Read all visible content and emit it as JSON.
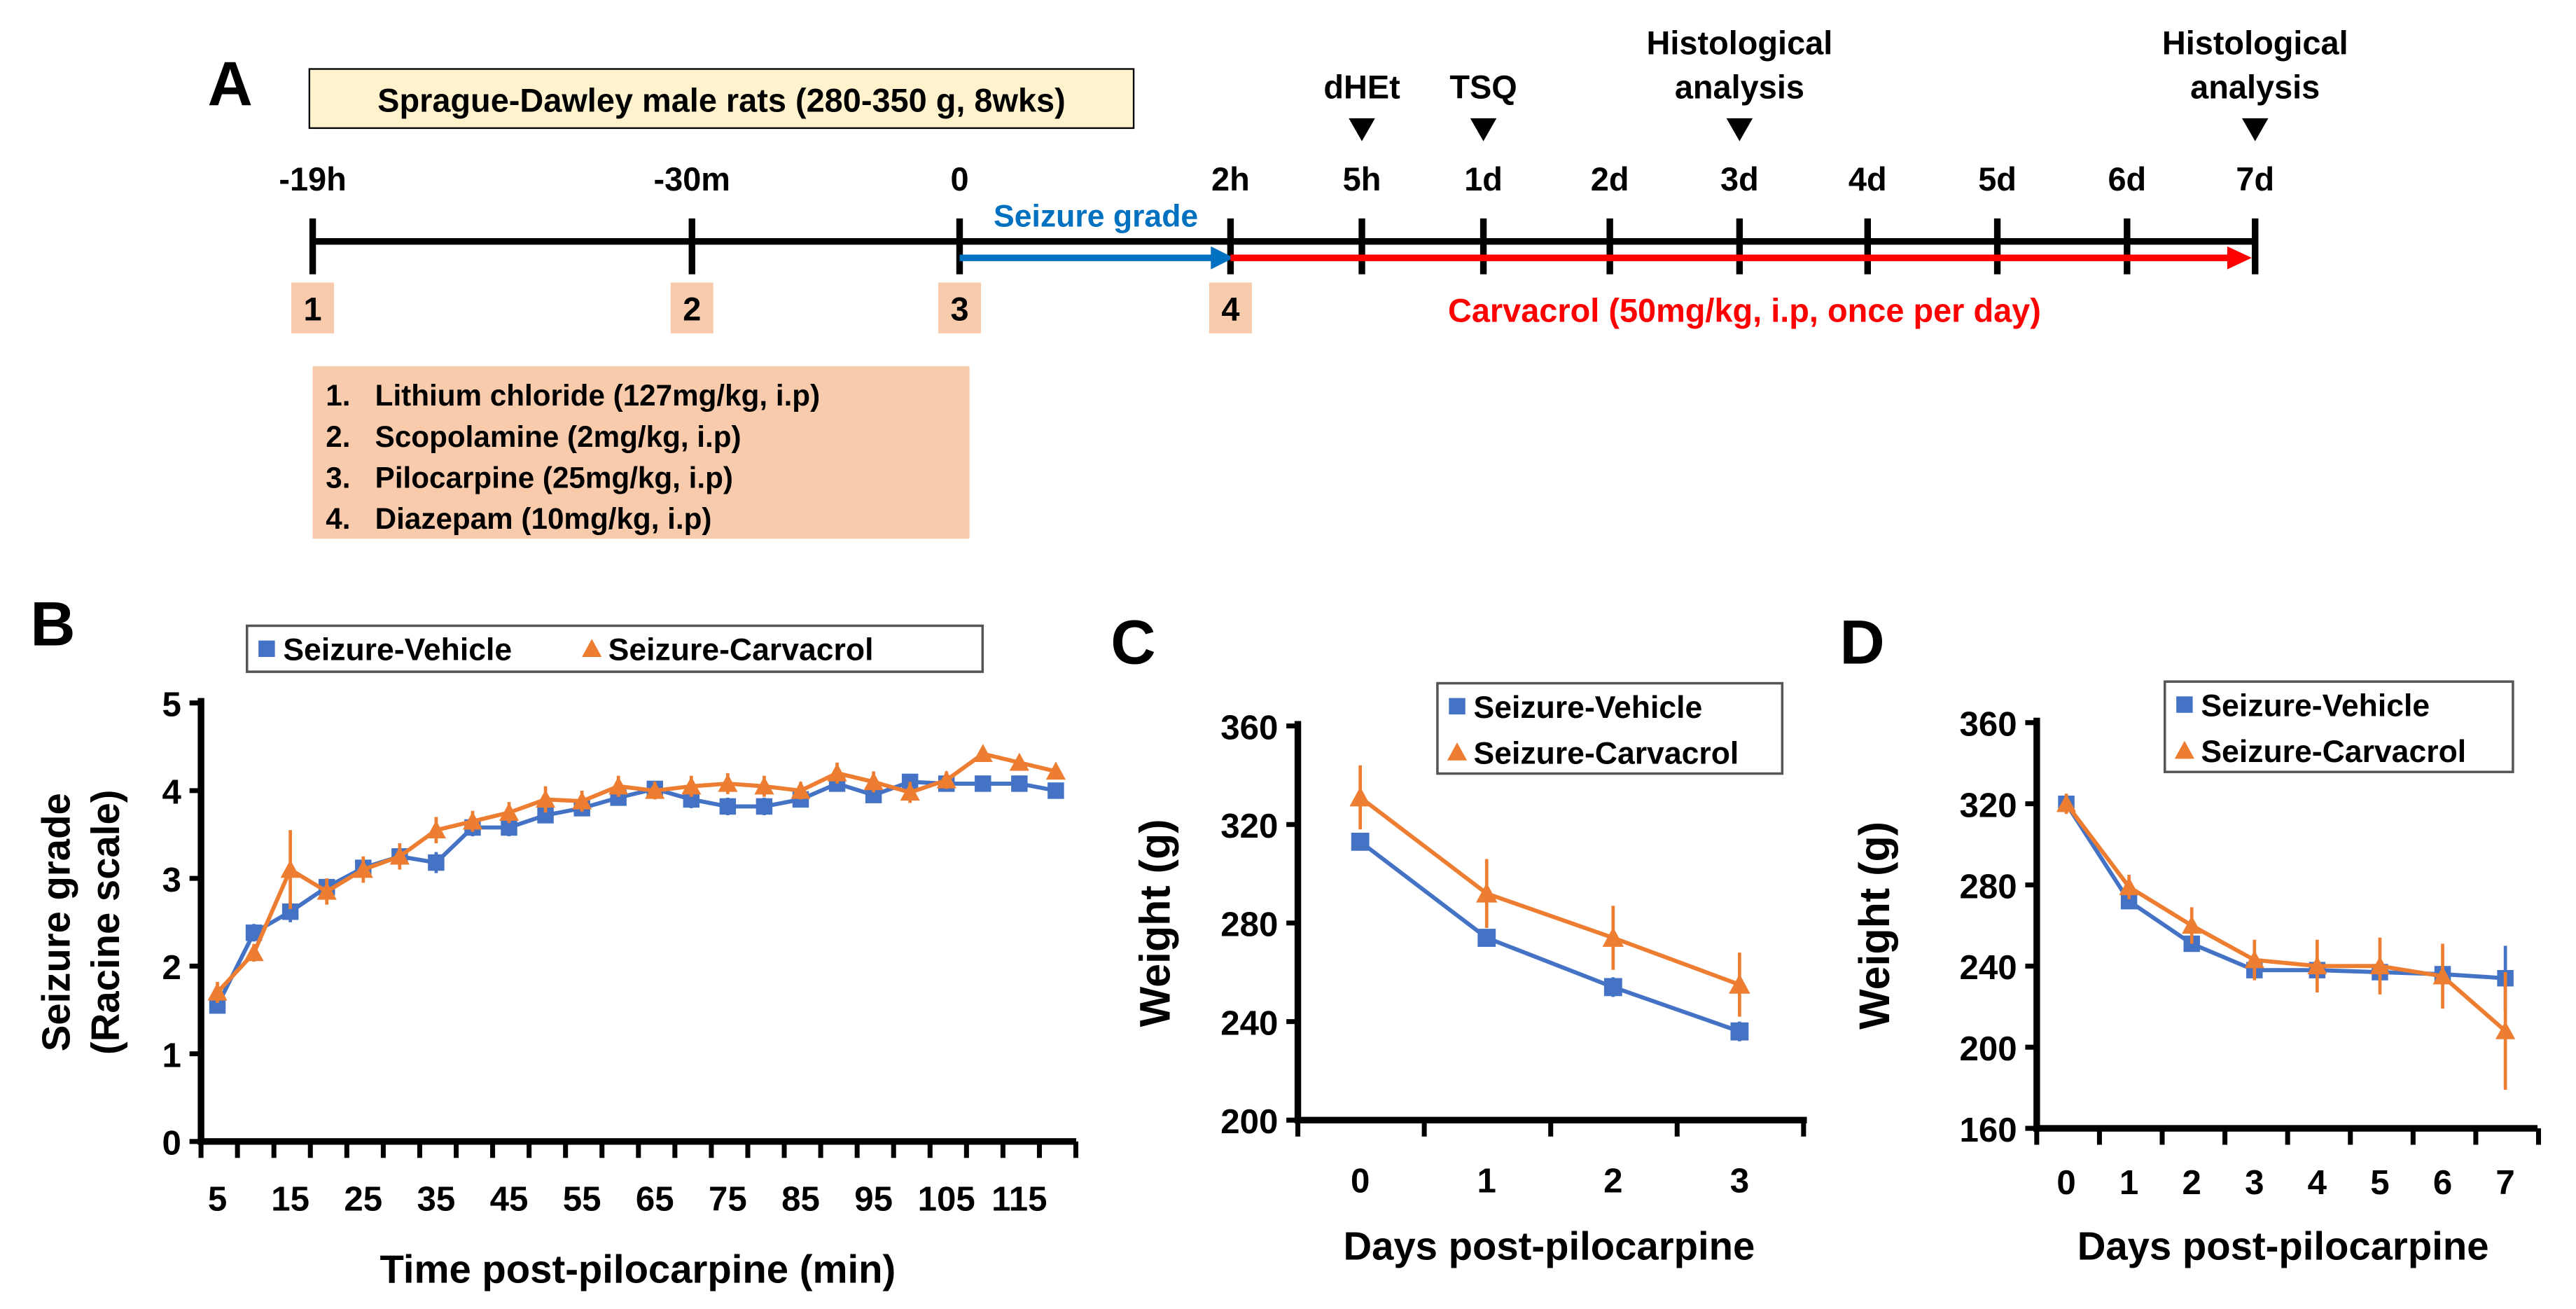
{
  "colors": {
    "vehicle": "#4472c4",
    "carvacrol": "#ed7d31",
    "seizure_arrow": "#0070c0",
    "carvacrol_arrow": "#ff0000",
    "box_peach": "#f8cbad",
    "box_yellow": "#fff2cc"
  },
  "panel_labels": [
    "A",
    "B",
    "C",
    "D"
  ],
  "timeline": {
    "title": "Sprague-Dawley male rats (280-350 g, 8wks)",
    "ticks": [
      "-19h",
      "-30m",
      "0",
      "2h",
      "5h",
      "1d",
      "2d",
      "3d",
      "4d",
      "5d",
      "6d",
      "7d"
    ],
    "markers": [
      {
        "label": "dHEt",
        "at": "5h"
      },
      {
        "label": "TSQ",
        "at": "1d"
      },
      {
        "label": "Histological\nanalysis",
        "at": "3d"
      },
      {
        "label": "Histological\nanalysis",
        "at": "7d"
      }
    ],
    "marker_lines": [
      "dHEt",
      "TSQ",
      "Histological",
      "analysis"
    ],
    "seizure_grade_label": "Seizure grade",
    "carvacrol_label": "Carvacrol (50mg/kg, i.p, once per day)",
    "step_boxes": [
      "1",
      "2",
      "3",
      "4"
    ],
    "protocol": [
      "1.   Lithium chloride (127mg/kg, i.p)",
      "2.   Scopolamine (2mg/kg, i.p)",
      "3.   Pilocarpine (25mg/kg, i.p)",
      "4.   Diazepam (10mg/kg, i.p)"
    ]
  },
  "chart_data": [
    {
      "panel": "B",
      "type": "line",
      "xlabel": "Time post-pilocarpine (min)",
      "ylabel_lines": [
        "Seizure grade",
        "(Racine scale)"
      ],
      "ylim": [
        0,
        5
      ],
      "yticks": [
        "0",
        "1",
        "2",
        "3",
        "4",
        "5"
      ],
      "x": [
        5,
        10,
        15,
        20,
        25,
        30,
        35,
        40,
        45,
        50,
        55,
        60,
        65,
        70,
        75,
        80,
        85,
        90,
        95,
        100,
        105,
        110,
        115,
        120
      ],
      "xtick_labels": [
        "5",
        "15",
        "25",
        "35",
        "45",
        "55",
        "65",
        "75",
        "85",
        "95",
        "105",
        "115"
      ],
      "legend": [
        "Seizure-Vehicle",
        "Seizure-Carvacrol"
      ],
      "legend_position": "top",
      "series": [
        {
          "name": "Seizure-Vehicle",
          "values": [
            1.55,
            2.38,
            2.62,
            2.9,
            3.12,
            3.25,
            3.18,
            3.58,
            3.58,
            3.72,
            3.8,
            3.92,
            4.02,
            3.9,
            3.82,
            3.82,
            3.9,
            4.08,
            3.95,
            4.1,
            4.08,
            4.08,
            4.08,
            4.0
          ],
          "errors": [
            0.08,
            0.1,
            0.12,
            0.08,
            0.08,
            0.08,
            0.12,
            0.1,
            0.1,
            0.08,
            0.08,
            0.08,
            0.08,
            0.1,
            0.1,
            0.1,
            0.08,
            0.08,
            0.08,
            0.08,
            0.08,
            0.08,
            0.08,
            0.05
          ]
        },
        {
          "name": "Seizure-Carvacrol",
          "values": [
            1.7,
            2.15,
            3.1,
            2.85,
            3.1,
            3.25,
            3.55,
            3.65,
            3.75,
            3.9,
            3.88,
            4.05,
            4.0,
            4.05,
            4.08,
            4.05,
            4.0,
            4.2,
            4.1,
            3.98,
            4.12,
            4.42,
            4.32,
            4.22
          ],
          "errors": [
            0.12,
            0.1,
            0.45,
            0.15,
            0.15,
            0.15,
            0.15,
            0.12,
            0.12,
            0.15,
            0.12,
            0.12,
            0.1,
            0.12,
            0.12,
            0.12,
            0.1,
            0.12,
            0.12,
            0.12,
            0.1,
            0.08,
            0.08,
            0.08
          ]
        }
      ]
    },
    {
      "panel": "C",
      "type": "line",
      "xlabel": "Days post-pilocarpine",
      "ylabel": "Weight (g)",
      "ylim": [
        200,
        360
      ],
      "yticks": [
        "200",
        "240",
        "280",
        "320",
        "360"
      ],
      "x": [
        0,
        1,
        2,
        3
      ],
      "xtick_labels": [
        "0",
        "1",
        "2",
        "3"
      ],
      "legend": [
        "Seizure-Vehicle",
        "Seizure-Carvacrol"
      ],
      "legend_position": "top-right",
      "series": [
        {
          "name": "Seizure-Vehicle",
          "values": [
            313,
            274,
            254,
            236
          ],
          "errors": [
            3,
            3,
            4,
            4
          ]
        },
        {
          "name": "Seizure-Carvacrol",
          "values": [
            331,
            292,
            274,
            255
          ],
          "errors": [
            13,
            14,
            13,
            13
          ]
        }
      ]
    },
    {
      "panel": "D",
      "type": "line",
      "xlabel": "Days post-pilocarpine",
      "ylabel": "Weight (g)",
      "ylim": [
        160,
        360
      ],
      "yticks": [
        "160",
        "200",
        "240",
        "280",
        "320",
        "360"
      ],
      "x": [
        0,
        1,
        2,
        3,
        4,
        5,
        6,
        7
      ],
      "xtick_labels": [
        "0",
        "1",
        "2",
        "3",
        "4",
        "5",
        "6",
        "7"
      ],
      "legend": [
        "Seizure-Vehicle",
        "Seizure-Carvacrol"
      ],
      "legend_position": "top-right",
      "series": [
        {
          "name": "Seizure-Vehicle",
          "values": [
            320,
            272,
            251,
            238,
            238,
            237,
            236,
            234
          ],
          "errors": [
            3,
            4,
            4,
            3,
            3,
            3,
            3,
            16
          ]
        },
        {
          "name": "Seizure-Carvacrol",
          "values": [
            320,
            279,
            260,
            243,
            240,
            240,
            235,
            208
          ],
          "errors": [
            5,
            6,
            9,
            10,
            13,
            14,
            16,
            29
          ]
        }
      ]
    }
  ]
}
